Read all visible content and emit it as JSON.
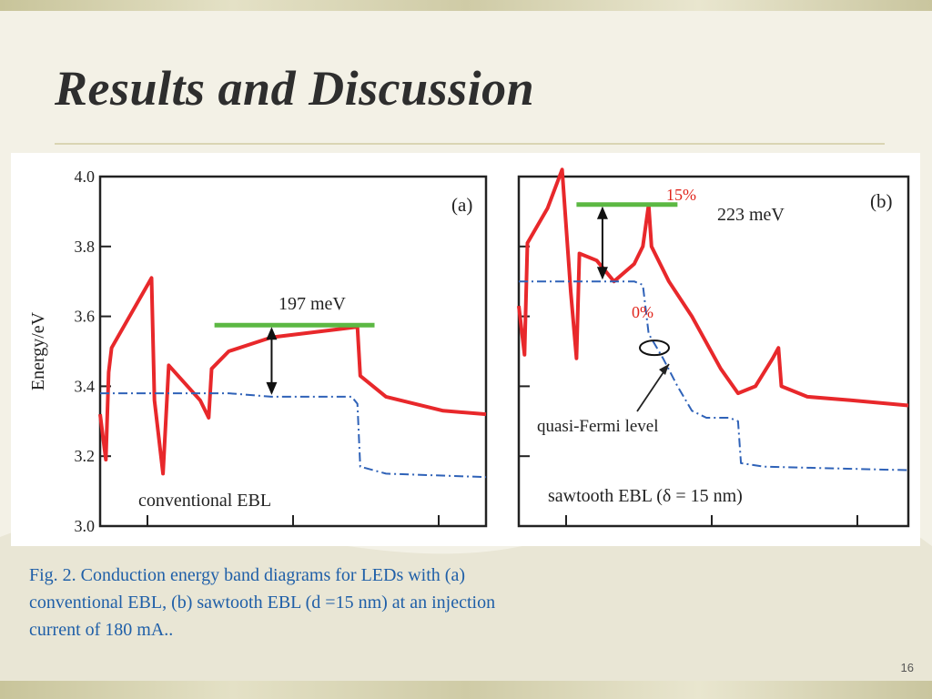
{
  "slide": {
    "title": "Results and Discussion",
    "caption": [
      "Fig. 2. Conduction energy band diagrams for LEDs with (a)",
      "conventional EBL, (b) sawtooth EBL (d =15 nm) at an injection",
      "current of 180 mA.."
    ],
    "page_number": "16"
  },
  "chart_data": [
    {
      "type": "line",
      "panel_label": "(a)",
      "ylabel": "Energy/eV",
      "ylim": [
        3.0,
        4.0
      ],
      "yticks": [
        "3.0",
        "3.2",
        "3.4",
        "3.6",
        "3.8",
        "4.0"
      ],
      "annotation_text": "conventional EBL",
      "barrier_label": "197 meV",
      "barrier_height_meV": 197,
      "series": [
        {
          "key": "conduction-band",
          "color": "#e8282b",
          "points": [
            [
              0,
              3.32
            ],
            [
              2,
              3.19
            ],
            [
              3,
              3.44
            ],
            [
              4,
              3.51
            ],
            [
              18,
              3.71
            ],
            [
              19,
              3.36
            ],
            [
              22,
              3.15
            ],
            [
              24,
              3.46
            ],
            [
              35,
              3.36
            ],
            [
              38,
              3.31
            ],
            [
              39,
              3.45
            ],
            [
              45,
              3.5
            ],
            [
              60,
              3.54
            ],
            [
              80,
              3.56
            ],
            [
              90,
              3.57
            ],
            [
              91,
              3.43
            ],
            [
              100,
              3.37
            ],
            [
              120,
              3.33
            ],
            [
              135,
              3.32
            ]
          ]
        },
        {
          "key": "quasi-fermi-level",
          "color": "#2f62b8",
          "dash": true,
          "points": [
            [
              0,
              3.38
            ],
            [
              45,
              3.38
            ],
            [
              60,
              3.37
            ],
            [
              88,
              3.37
            ],
            [
              90,
              3.35
            ],
            [
              91,
              3.17
            ],
            [
              100,
              3.15
            ],
            [
              135,
              3.14
            ]
          ]
        }
      ],
      "markers": {
        "line_level": 3.575,
        "line_x": [
          40,
          96
        ],
        "arrow_x": 60,
        "arrow_bottom": 3.37
      }
    },
    {
      "type": "line",
      "panel_label": "(b)",
      "annotation_text": "sawtooth EBL (δ = 15 nm)",
      "fermi_label": "quasi-Fermi level",
      "barrier_label": "223 meV",
      "barrier_height_meV": 223,
      "pct_top": "15%",
      "pct_bottom": "0%",
      "series": [
        {
          "key": "conduction-band",
          "color": "#e8282b",
          "points": [
            [
              0,
              3.63
            ],
            [
              2,
              3.49
            ],
            [
              3,
              3.81
            ],
            [
              10,
              3.91
            ],
            [
              15,
              4.02
            ],
            [
              18,
              3.67
            ],
            [
              20,
              3.48
            ],
            [
              21,
              3.78
            ],
            [
              27,
              3.76
            ],
            [
              33,
              3.7
            ],
            [
              40,
              3.75
            ],
            [
              43,
              3.8
            ],
            [
              45,
              3.92
            ],
            [
              46,
              3.8
            ],
            [
              52,
              3.7
            ],
            [
              60,
              3.6
            ],
            [
              70,
              3.45
            ],
            [
              76,
              3.38
            ],
            [
              82,
              3.4
            ],
            [
              88,
              3.48
            ],
            [
              90,
              3.51
            ],
            [
              91,
              3.4
            ],
            [
              100,
              3.37
            ],
            [
              115,
              3.36
            ],
            [
              135,
              3.345
            ]
          ]
        },
        {
          "key": "quasi-fermi-level",
          "color": "#2f62b8",
          "dash": true,
          "points": [
            [
              0,
              3.7
            ],
            [
              40,
              3.7
            ],
            [
              43,
              3.69
            ],
            [
              45,
              3.55
            ],
            [
              50,
              3.48
            ],
            [
              55,
              3.4
            ],
            [
              60,
              3.33
            ],
            [
              65,
              3.31
            ],
            [
              73,
              3.31
            ],
            [
              76,
              3.3
            ],
            [
              77,
              3.18
            ],
            [
              85,
              3.17
            ],
            [
              135,
              3.16
            ]
          ]
        }
      ],
      "markers": {
        "line_level": 3.92,
        "line_x": [
          20,
          55
        ],
        "arrow_x": 29,
        "arrow_bottom": 3.7,
        "ellipse_x": 47,
        "ellipse_y": 3.51
      }
    }
  ]
}
